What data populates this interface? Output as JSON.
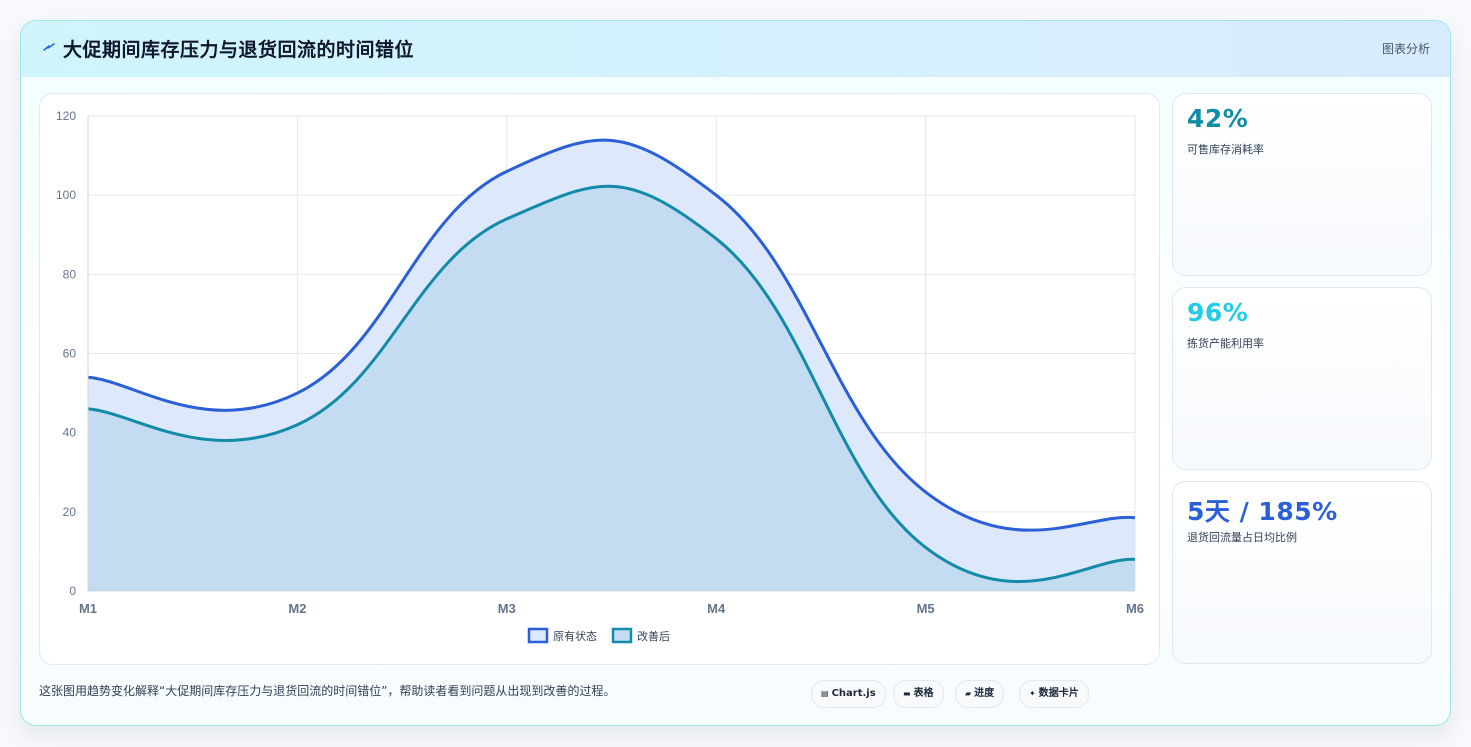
{
  "header": {
    "title": "大促期间库存压力与退货回流的时间错位",
    "tag": "图表分析"
  },
  "colors": {
    "series1": "#2a5fd8",
    "series1_fill": "#dde8fb",
    "series2": "#138aa9",
    "series2_fill": "#c4dcf1",
    "stat1": "#0e8ea6",
    "stat2": "#22cce6",
    "stat3": "#2a5fd8"
  },
  "stats": [
    {
      "value": "42%",
      "label": "可售库存消耗率"
    },
    {
      "value": "96%",
      "label": "拣货产能利用率"
    },
    {
      "value": "5天 / 185%",
      "label": "退货回流量占日均比例"
    }
  ],
  "footer": {
    "description": "这张图用趋势变化解释“大促期间库存压力与退货回流的时间错位”，帮助读者看到问题从出现到改善的过程。",
    "chips": [
      {
        "icon": "chart-icon",
        "label": "Chart.js"
      },
      {
        "icon": "table-icon",
        "label": "表格"
      },
      {
        "icon": "progress-icon",
        "label": "进度"
      },
      {
        "icon": "sparkle-icon",
        "label": "数据卡片"
      }
    ]
  },
  "chart_data": {
    "type": "area",
    "categories": [
      "M1",
      "M2",
      "M3",
      "M4",
      "M5",
      "M6"
    ],
    "series": [
      {
        "name": "原有状态",
        "values": [
          54,
          50,
          106,
          100,
          25,
          18.5
        ]
      },
      {
        "name": "改善后",
        "values": [
          46,
          42,
          94,
          89,
          11,
          8
        ]
      }
    ],
    "ylim": [
      0,
      120
    ],
    "yticks": [
      0,
      20,
      40,
      60,
      80,
      100,
      120
    ],
    "grid": true,
    "legend": "bottom"
  }
}
